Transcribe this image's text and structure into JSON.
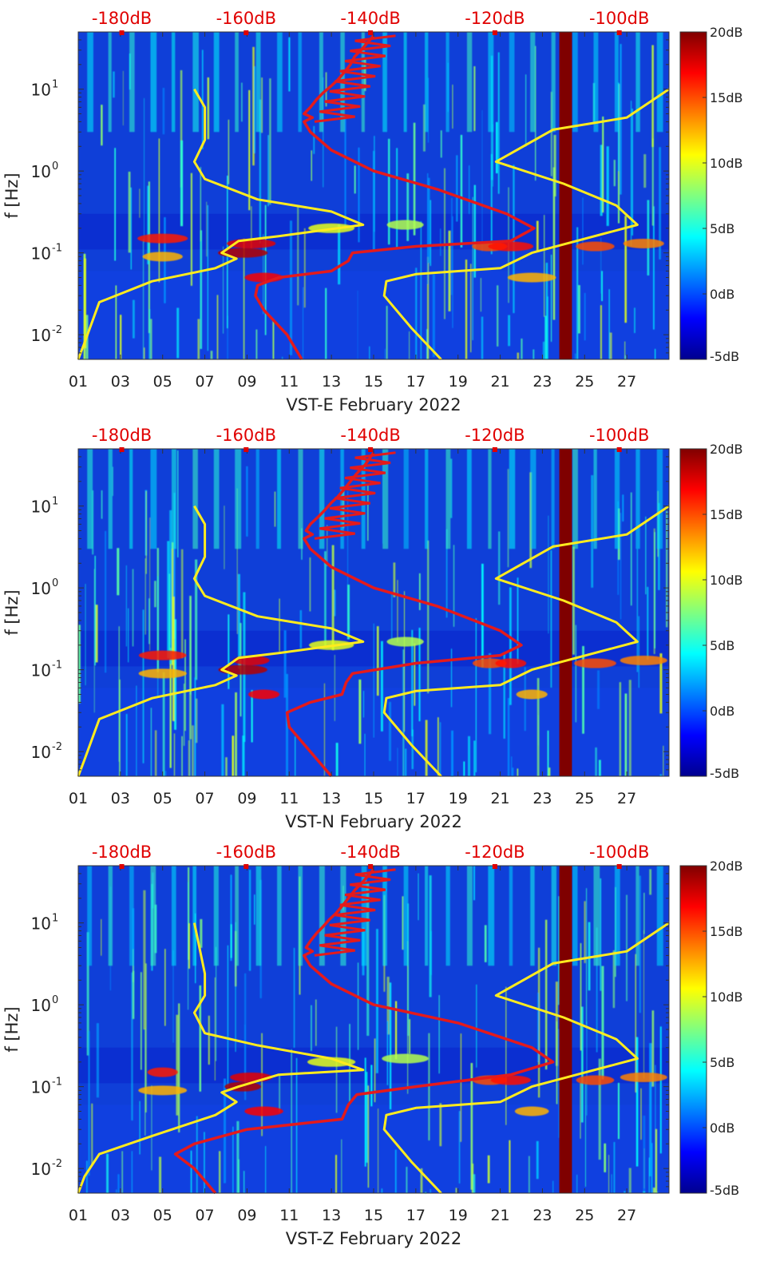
{
  "colors": {
    "background_dark": "#00008f",
    "noise_high": "#7f0000",
    "yellow_curve": "#ffeb1e",
    "red_curve": "#e41a1c",
    "top_axis_text": "#e00000",
    "axis_text": "#222222"
  },
  "colorbar": {
    "colormap": "jet",
    "ticks": [
      "20dB",
      "15dB",
      "10dB",
      "5dB",
      "0dB",
      "-5dB"
    ]
  },
  "chart_data": [
    {
      "type": "heatmap",
      "title": "",
      "xlabel": "VST-E February 2022",
      "ylabel": "f [Hz]",
      "x_ticks": [
        "01",
        "03",
        "05",
        "07",
        "09",
        "11",
        "13",
        "15",
        "17",
        "19",
        "21",
        "23",
        "25",
        "27"
      ],
      "xlim": [
        1,
        29
      ],
      "y_scale": "log",
      "y_ticks": [
        "10^-2",
        "10^-1",
        "10^0",
        "10^1"
      ],
      "ylim": [
        0.005,
        50
      ],
      "clim_db": [
        -5,
        20
      ],
      "top_axis": {
        "ticks": [
          "-180dB",
          "-160dB",
          "-140dB",
          "-120dB",
          "-100dB"
        ],
        "range_db": [
          -187,
          -92
        ]
      },
      "data_gap_days": [
        23.8,
        24.4
      ],
      "series": [
        {
          "label": "yellow_left",
          "x_day": [
            1.0,
            1.3,
            2.0,
            4.5,
            7.5,
            8.5,
            7.8,
            8.6,
            10.5,
            14.5,
            13.0,
            9.5,
            7.0,
            6.5,
            7.0,
            7.0,
            6.5
          ],
          "y_hz": [
            0.005,
            0.008,
            0.025,
            0.045,
            0.065,
            0.085,
            0.1,
            0.14,
            0.16,
            0.22,
            0.32,
            0.45,
            0.8,
            1.3,
            2.4,
            6.0,
            10
          ]
        },
        {
          "label": "yellow_right",
          "x_day": [
            18.2,
            16.8,
            15.5,
            15.6,
            17.0,
            21.0,
            22.5,
            27.5,
            26.5,
            24.0,
            20.8,
            23.5,
            27.0,
            29.0
          ],
          "y_hz": [
            0.005,
            0.012,
            0.03,
            0.045,
            0.055,
            0.065,
            0.1,
            0.22,
            0.38,
            0.7,
            1.3,
            3.2,
            4.5,
            10
          ]
        },
        {
          "label": "red_psd",
          "x_day": [
            11.6,
            10.9,
            9.8,
            9.4,
            9.5,
            10.5,
            13.0,
            13.8,
            14.0,
            17.0,
            21.5,
            22.6,
            21.3,
            18.0,
            15.0,
            13.0,
            12.0,
            11.7,
            12.1,
            11.7,
            12.0,
            12.3,
            12.6,
            13.0,
            13.3,
            13.6,
            13.9,
            14.1,
            14.5,
            15.0
          ],
          "y_hz": [
            0.005,
            0.01,
            0.02,
            0.03,
            0.04,
            0.05,
            0.06,
            0.08,
            0.1,
            0.12,
            0.14,
            0.2,
            0.3,
            0.6,
            1.0,
            1.8,
            3.0,
            4.0,
            4.5,
            5.0,
            6.0,
            7.5,
            9.0,
            11,
            13,
            16,
            20,
            25,
            32,
            45
          ]
        }
      ]
    },
    {
      "type": "heatmap",
      "title": "",
      "xlabel": "VST-N February 2022",
      "ylabel": "f [Hz]",
      "x_ticks": [
        "01",
        "03",
        "05",
        "07",
        "09",
        "11",
        "13",
        "15",
        "17",
        "19",
        "21",
        "23",
        "25",
        "27"
      ],
      "xlim": [
        1,
        29
      ],
      "y_scale": "log",
      "y_ticks": [
        "10^-2",
        "10^-1",
        "10^0",
        "10^1"
      ],
      "ylim": [
        0.005,
        50
      ],
      "clim_db": [
        -5,
        20
      ],
      "top_axis": {
        "ticks": [
          "-180dB",
          "-160dB",
          "-140dB",
          "-120dB",
          "-100dB"
        ],
        "range_db": [
          -187,
          -92
        ]
      },
      "data_gap_days": [
        23.8,
        24.4
      ],
      "series": [
        {
          "label": "yellow_left",
          "x_day": [
            1.0,
            1.3,
            2.0,
            4.5,
            7.5,
            8.5,
            7.8,
            8.6,
            10.5,
            14.5,
            13.0,
            9.5,
            7.0,
            6.5,
            7.0,
            7.0,
            6.5
          ],
          "y_hz": [
            0.005,
            0.008,
            0.025,
            0.045,
            0.065,
            0.085,
            0.1,
            0.14,
            0.16,
            0.22,
            0.32,
            0.45,
            0.8,
            1.3,
            2.4,
            6.0,
            10
          ]
        },
        {
          "label": "yellow_right",
          "x_day": [
            18.2,
            16.8,
            15.5,
            15.6,
            17.0,
            21.0,
            22.5,
            27.5,
            26.5,
            24.0,
            20.8,
            23.5,
            27.0,
            29.0
          ],
          "y_hz": [
            0.005,
            0.012,
            0.03,
            0.045,
            0.055,
            0.065,
            0.1,
            0.22,
            0.38,
            0.7,
            1.3,
            3.2,
            4.5,
            10
          ]
        },
        {
          "label": "red_psd",
          "x_day": [
            13.0,
            12.0,
            11.0,
            10.9,
            12.0,
            13.5,
            13.7,
            14.0,
            17.0,
            21.0,
            22.0,
            21.0,
            18.0,
            15.0,
            13.0,
            12.0,
            11.7,
            12.1,
            11.8,
            12.0,
            12.4,
            12.7,
            13.0,
            13.3,
            13.6,
            13.9,
            14.2,
            14.6,
            15.0
          ],
          "y_hz": [
            0.005,
            0.01,
            0.02,
            0.03,
            0.04,
            0.05,
            0.07,
            0.09,
            0.12,
            0.15,
            0.2,
            0.3,
            0.6,
            1.0,
            1.8,
            3.0,
            4.0,
            4.5,
            5.0,
            6.0,
            7.5,
            9.0,
            11,
            13,
            16,
            20,
            25,
            32,
            45
          ]
        }
      ]
    },
    {
      "type": "heatmap",
      "title": "",
      "xlabel": "VST-Z February 2022",
      "ylabel": "f [Hz]",
      "x_ticks": [
        "01",
        "03",
        "05",
        "07",
        "09",
        "11",
        "13",
        "15",
        "17",
        "19",
        "21",
        "23",
        "25",
        "27"
      ],
      "xlim": [
        1,
        29
      ],
      "y_scale": "log",
      "y_ticks": [
        "10^-2",
        "10^-1",
        "10^0",
        "10^1"
      ],
      "ylim": [
        0.005,
        50
      ],
      "clim_db": [
        -5,
        20
      ],
      "top_axis": {
        "ticks": [
          "-180dB",
          "-160dB",
          "-140dB",
          "-120dB",
          "-100dB"
        ],
        "range_db": [
          -187,
          -92
        ]
      },
      "data_gap_days": [
        23.8,
        24.4
      ],
      "series": [
        {
          "label": "yellow_left",
          "x_day": [
            1.0,
            1.3,
            2.0,
            4.5,
            7.5,
            8.5,
            7.8,
            8.6,
            10.5,
            14.5,
            13.0,
            9.5,
            7.0,
            6.5,
            7.0,
            7.0,
            6.5
          ],
          "y_hz": [
            0.005,
            0.008,
            0.015,
            0.025,
            0.045,
            0.065,
            0.085,
            0.1,
            0.14,
            0.16,
            0.22,
            0.32,
            0.45,
            0.8,
            1.3,
            2.4,
            10
          ]
        },
        {
          "label": "yellow_right",
          "x_day": [
            18.2,
            16.8,
            15.5,
            15.6,
            17.0,
            21.0,
            22.5,
            27.5,
            26.5,
            24.0,
            20.8,
            23.5,
            27.0,
            29.0
          ],
          "y_hz": [
            0.005,
            0.012,
            0.03,
            0.045,
            0.055,
            0.065,
            0.1,
            0.22,
            0.38,
            0.7,
            1.3,
            3.2,
            4.5,
            10
          ]
        },
        {
          "label": "red_psd",
          "x_day": [
            7.5,
            6.5,
            5.6,
            6.5,
            9.0,
            13.5,
            13.8,
            14.2,
            17.0,
            21.5,
            23.5,
            22.5,
            19.0,
            15.0,
            13.0,
            12.0,
            11.7,
            12.1,
            11.8,
            12.0,
            12.3,
            12.6,
            12.9,
            13.2,
            13.5,
            13.8,
            14.1,
            14.5,
            15.0
          ],
          "y_hz": [
            0.005,
            0.01,
            0.015,
            0.02,
            0.03,
            0.04,
            0.06,
            0.08,
            0.1,
            0.14,
            0.2,
            0.3,
            0.6,
            1.0,
            1.8,
            3.0,
            4.0,
            4.5,
            5.0,
            6.0,
            7.5,
            9.0,
            11,
            13,
            16,
            20,
            25,
            32,
            45
          ]
        }
      ]
    }
  ]
}
